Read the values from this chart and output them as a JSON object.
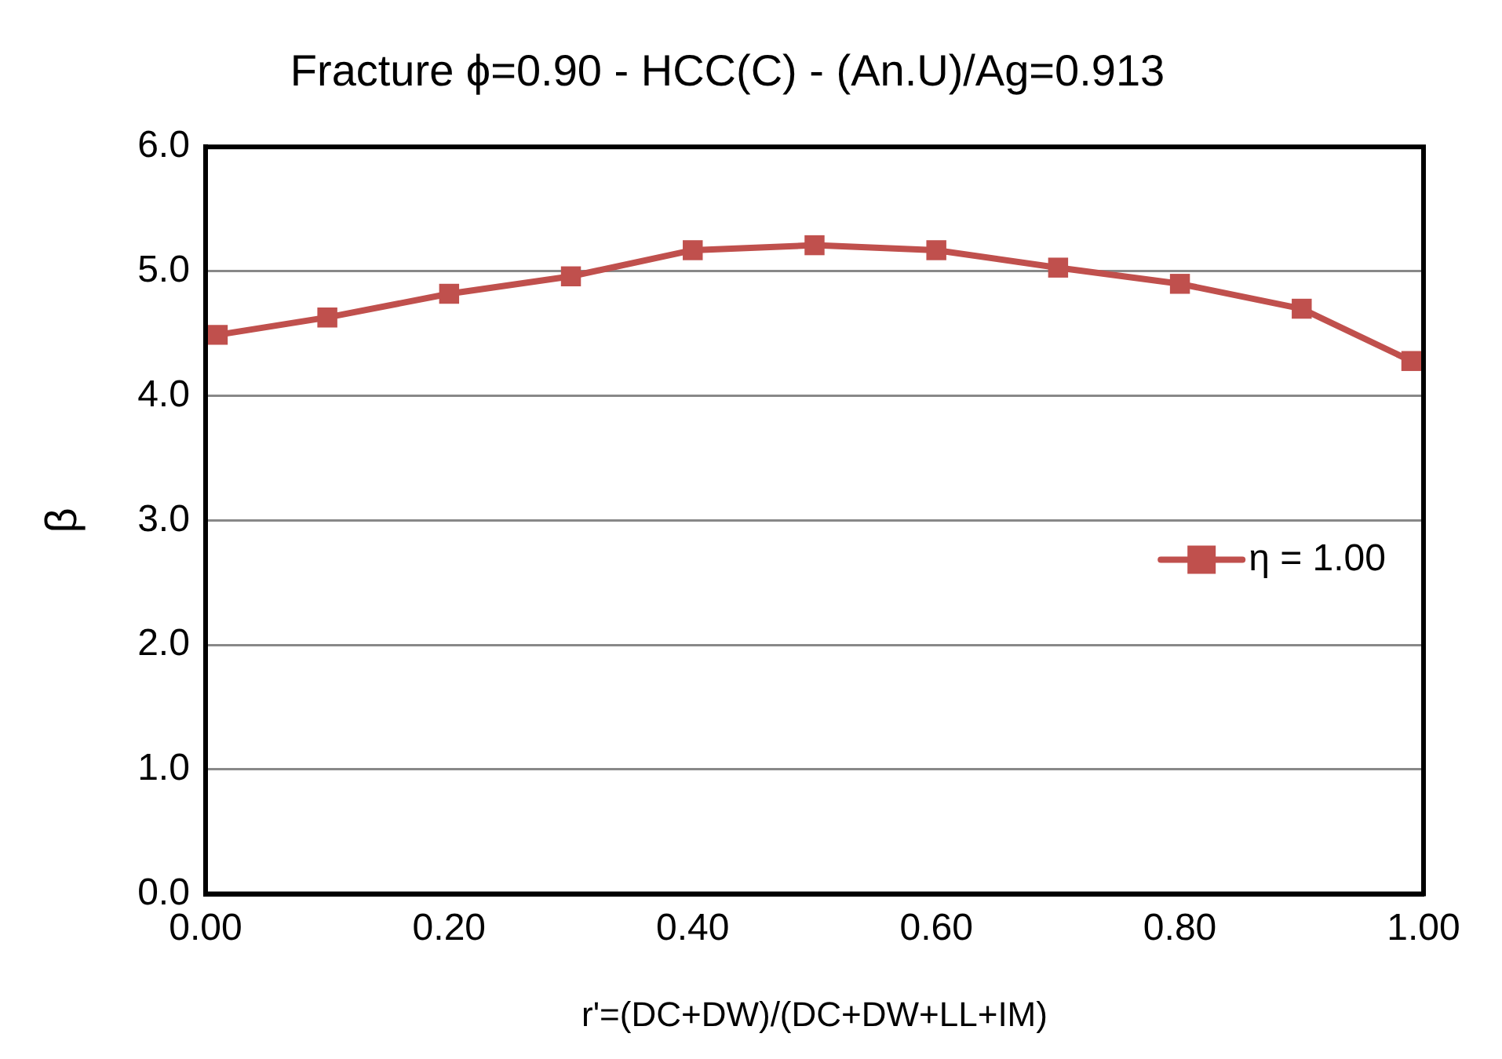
{
  "chart_data": {
    "type": "line",
    "title": "Fracture ϕ=0.90 - HCC(C) - (An.U)/Ag=0.913",
    "xlabel": "r'=(DC+DW)/(DC+DW+LL+IM)",
    "ylabel": "β",
    "x": [
      0.01,
      0.1,
      0.2,
      0.3,
      0.4,
      0.5,
      0.6,
      0.7,
      0.8,
      0.9,
      0.99
    ],
    "series": [
      {
        "name": "η = 1.00",
        "color": "#c0504d",
        "values": [
          4.49,
          4.63,
          4.82,
          4.96,
          5.17,
          5.21,
          5.17,
          5.03,
          4.9,
          4.7,
          4.28
        ]
      }
    ],
    "xlim": [
      0,
      1
    ],
    "xticks": [
      {
        "value": 0,
        "label": "0.00"
      },
      {
        "value": 0.2,
        "label": "0.20"
      },
      {
        "value": 0.4,
        "label": "0.40"
      },
      {
        "value": 0.6,
        "label": "0.60"
      },
      {
        "value": 0.8,
        "label": "0.80"
      },
      {
        "value": 1,
        "label": "1.00"
      }
    ],
    "ylim": [
      0,
      6
    ],
    "yticks": [
      {
        "value": 0,
        "label": "0.0"
      },
      {
        "value": 1,
        "label": "1.0"
      },
      {
        "value": 2,
        "label": "2.0"
      },
      {
        "value": 3,
        "label": "3.0"
      },
      {
        "value": 4,
        "label": "4.0"
      },
      {
        "value": 5,
        "label": "5.0"
      },
      {
        "value": 6,
        "label": "6.0"
      }
    ],
    "grid": "y",
    "legend": "right",
    "marker": "square",
    "line_style": "solid"
  }
}
